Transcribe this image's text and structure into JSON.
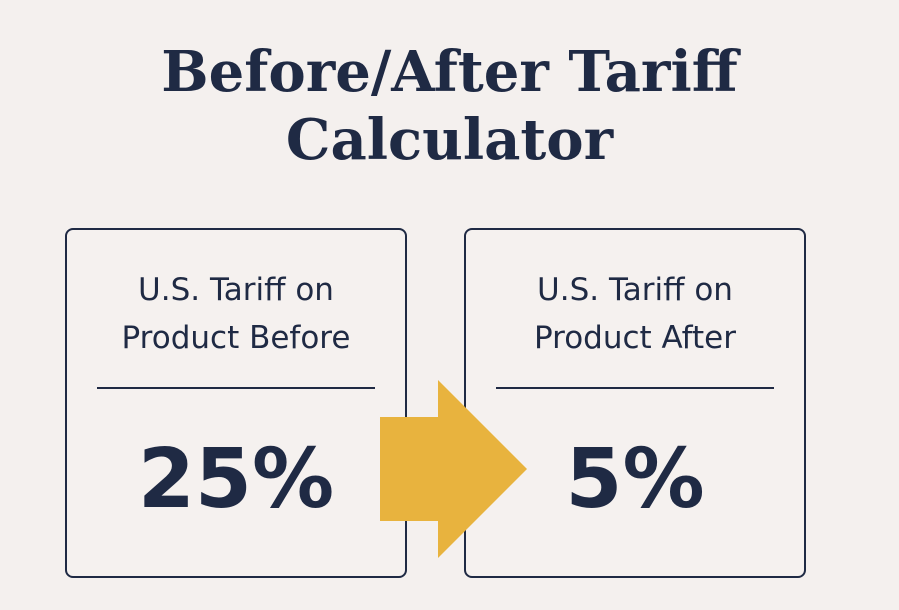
{
  "title": {
    "line1": "Before/After Tariff",
    "line2": "Calculator"
  },
  "before": {
    "label_line1": "U.S. Tariff on",
    "label_line2": "Product Before",
    "value": "25%"
  },
  "after": {
    "label_line1": "U.S. Tariff on",
    "label_line2": "Product After",
    "value": "5%"
  },
  "arrow": {
    "icon": "arrow-right-icon",
    "color": "#e8b33e"
  },
  "colors": {
    "background": "#f4f0ee",
    "text": "#1f2a44",
    "accent": "#e8b33e"
  }
}
